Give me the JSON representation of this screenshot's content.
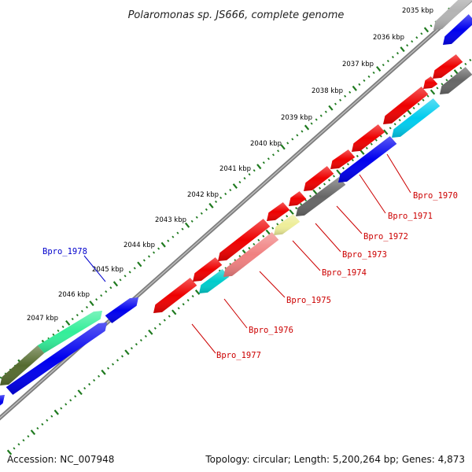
{
  "title": "Polaromonas sp. JS666, complete genome",
  "accession": "Accession: NC_007948",
  "topology": "Topology: circular; Length: 5,200,264 bp; Genes: 4,873",
  "colors": {
    "tick": "#1f7a1f",
    "backbone": "#7d7d7d",
    "label_forward": "#0000cc",
    "label_reverse": "#cc0000",
    "leader": "#cc0000"
  },
  "ticks": [
    "2035 kbp",
    "2036 kbp",
    "2037 kbp",
    "2038 kbp",
    "2039 kbp",
    "2040 kbp",
    "2041 kbp",
    "2042 kbp",
    "2043 kbp",
    "2044 kbp",
    "2045 kbp",
    "2046 kbp",
    "2047 kbp"
  ],
  "gene_labels": [
    {
      "name": "Bpro_1970",
      "strand": "reverse"
    },
    {
      "name": "Bpro_1971",
      "strand": "reverse"
    },
    {
      "name": "Bpro_1972",
      "strand": "reverse"
    },
    {
      "name": "Bpro_1973",
      "strand": "reverse"
    },
    {
      "name": "Bpro_1974",
      "strand": "reverse"
    },
    {
      "name": "Bpro_1975",
      "strand": "reverse"
    },
    {
      "name": "Bpro_1976",
      "strand": "reverse"
    },
    {
      "name": "Bpro_1977",
      "strand": "reverse"
    },
    {
      "name": "Bpro_1978",
      "strand": "forward"
    }
  ]
}
